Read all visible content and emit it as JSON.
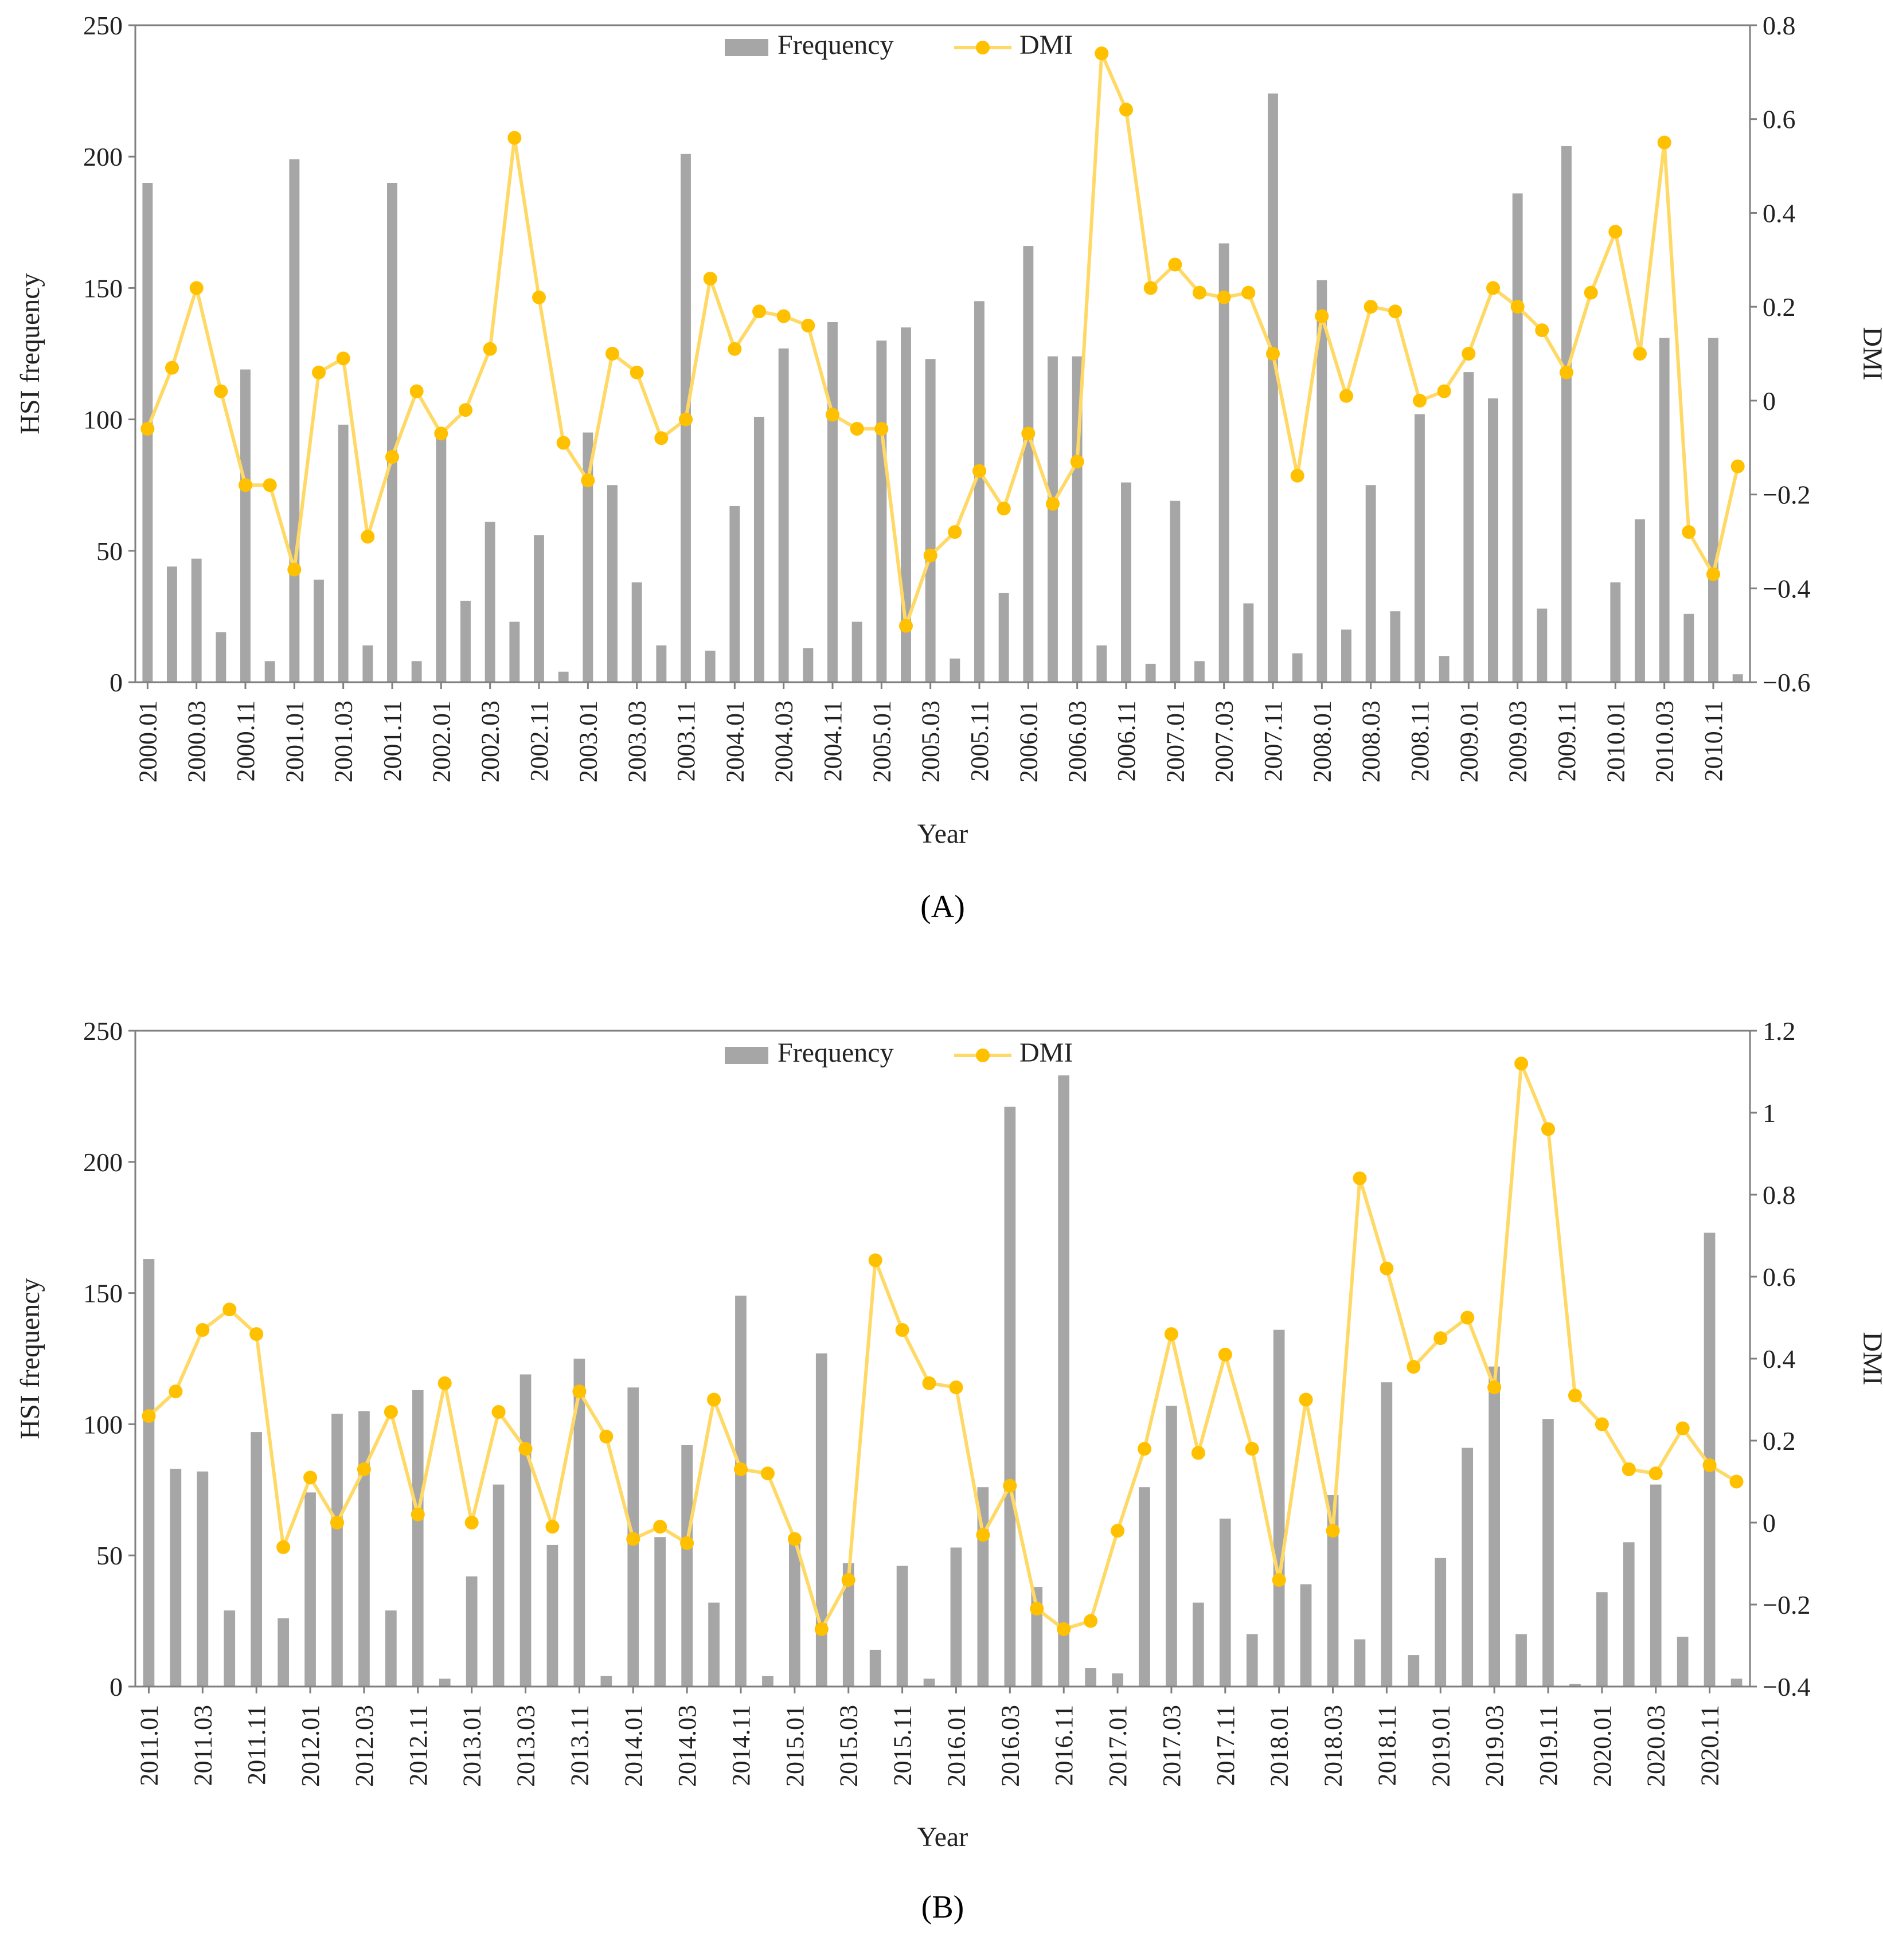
{
  "colors": {
    "bar": "#a6a6a6",
    "line": "#ffd966",
    "marker": "#ffc000",
    "axis": "#7f7f7f"
  },
  "chart_data": [
    {
      "type": "bar+line",
      "panel_label": "(A)",
      "legend": {
        "bars": "Frequency",
        "line": "DMI",
        "placement": "top-center"
      },
      "xlabel": "Year",
      "ylabel_left": "HSI frequency",
      "ylabel_right": "DMI",
      "ylim_left": [
        0,
        250
      ],
      "yticks_left": [
        "0",
        "50",
        "100",
        "150",
        "200",
        "250"
      ],
      "ylim_right": [
        -0.6,
        0.8
      ],
      "yticks_right": [
        "−0.6",
        "−0.4",
        "−0.2",
        "0",
        "0.2",
        "0.4",
        "0.6",
        "0.8"
      ],
      "tick_labels": [
        "2000.01",
        "2000.03",
        "2000.11",
        "2001.01",
        "2001.03",
        "2001.11",
        "2002.01",
        "2002.03",
        "2002.11",
        "2003.01",
        "2003.03",
        "2003.11",
        "2004.01",
        "2004.03",
        "2004.11",
        "2005.01",
        "2005.03",
        "2005.11",
        "2006.01",
        "2006.03",
        "2006.11",
        "2007.01",
        "2007.03",
        "2007.11",
        "2008.01",
        "2008.03",
        "2008.11",
        "2009.01",
        "2009.03",
        "2009.11",
        "2010.01",
        "2010.03",
        "2010.11"
      ],
      "tick_every": 2,
      "frequency": [
        190,
        44,
        47,
        19,
        119,
        8,
        199,
        39,
        98,
        14,
        190,
        8,
        95,
        31,
        61,
        23,
        56,
        4,
        95,
        75,
        38,
        14,
        201,
        12,
        67,
        101,
        127,
        13,
        137,
        23,
        130,
        135,
        123,
        9,
        145,
        34,
        166,
        124,
        124,
        14,
        76,
        7,
        69,
        8,
        167,
        30,
        224,
        11,
        153,
        20,
        75,
        27,
        102,
        10,
        118,
        108,
        186,
        28,
        204,
        0,
        38,
        62,
        131,
        26,
        131,
        3
      ],
      "dmi": [
        -0.06,
        0.07,
        0.24,
        0.02,
        -0.18,
        -0.18,
        -0.36,
        0.06,
        0.09,
        -0.29,
        -0.12,
        0.02,
        -0.07,
        -0.02,
        0.11,
        0.56,
        0.22,
        -0.09,
        -0.17,
        0.1,
        0.06,
        -0.08,
        -0.04,
        0.26,
        0.11,
        0.19,
        0.18,
        0.16,
        -0.03,
        -0.06,
        -0.06,
        -0.48,
        -0.33,
        -0.28,
        -0.15,
        -0.23,
        -0.07,
        -0.22,
        -0.13,
        0.74,
        0.62,
        0.24,
        0.29,
        0.23,
        0.22,
        0.23,
        0.1,
        -0.16,
        0.18,
        0.01,
        0.2,
        0.19,
        0.0,
        0.02,
        0.1,
        0.24,
        0.2,
        0.15,
        0.06,
        0.23,
        0.36,
        0.1,
        0.55,
        -0.28,
        -0.37,
        -0.14
      ]
    },
    {
      "type": "bar+line",
      "panel_label": "(B)",
      "legend": {
        "bars": "Frequency",
        "line": "DMI",
        "placement": "top-center"
      },
      "xlabel": "Year",
      "ylabel_left": "HSI frequency",
      "ylabel_right": "DMI",
      "ylim_left": [
        0,
        250
      ],
      "yticks_left": [
        "0",
        "50",
        "100",
        "150",
        "200",
        "250"
      ],
      "ylim_right": [
        -0.4,
        1.2
      ],
      "yticks_right": [
        "−0.4",
        "−0.2",
        "0",
        "0.2",
        "0.4",
        "0.6",
        "0.8",
        "1",
        "1.2"
      ],
      "tick_labels": [
        "2011.01",
        "2011.03",
        "2011.11",
        "2012.01",
        "2012.03",
        "2012.11",
        "2013.01",
        "2013.03",
        "2013.11",
        "2014.01",
        "2014.03",
        "2014.11",
        "2015.01",
        "2015.03",
        "2015.11",
        "2016.01",
        "2016.03",
        "2016.11",
        "2017.01",
        "2017.03",
        "2017.11",
        "2018.01",
        "2018.03",
        "2018.11",
        "2019.01",
        "2019.03",
        "2019.11",
        "2020.01",
        "2020.03",
        "2020.11"
      ],
      "tick_every": 2,
      "frequency": [
        163,
        83,
        82,
        29,
        97,
        26,
        74,
        104,
        105,
        29,
        113,
        3,
        42,
        77,
        119,
        54,
        125,
        4,
        114,
        57,
        92,
        32,
        149,
        4,
        56,
        127,
        47,
        14,
        46,
        3,
        53,
        76,
        221,
        38,
        233,
        7,
        5,
        76,
        107,
        32,
        64,
        20,
        136,
        39,
        73,
        18,
        116,
        12,
        49,
        91,
        122,
        20,
        102,
        1,
        36,
        55,
        77,
        19,
        173,
        3
      ],
      "dmi": [
        0.26,
        0.32,
        0.47,
        0.52,
        0.46,
        -0.06,
        0.11,
        0.0,
        0.13,
        0.27,
        0.02,
        0.34,
        0.0,
        0.27,
        0.18,
        -0.01,
        0.32,
        0.21,
        -0.04,
        -0.01,
        -0.05,
        0.3,
        0.13,
        0.12,
        -0.04,
        -0.26,
        -0.14,
        0.64,
        0.47,
        0.34,
        0.33,
        -0.03,
        0.09,
        -0.21,
        -0.26,
        -0.24,
        -0.02,
        0.18,
        0.46,
        0.17,
        0.41,
        0.18,
        -0.14,
        0.3,
        -0.02,
        0.84,
        0.62,
        0.38,
        0.45,
        0.5,
        0.33,
        1.12,
        0.96,
        0.31,
        0.24,
        0.13,
        0.12,
        0.23,
        0.14,
        0.1
      ]
    }
  ]
}
